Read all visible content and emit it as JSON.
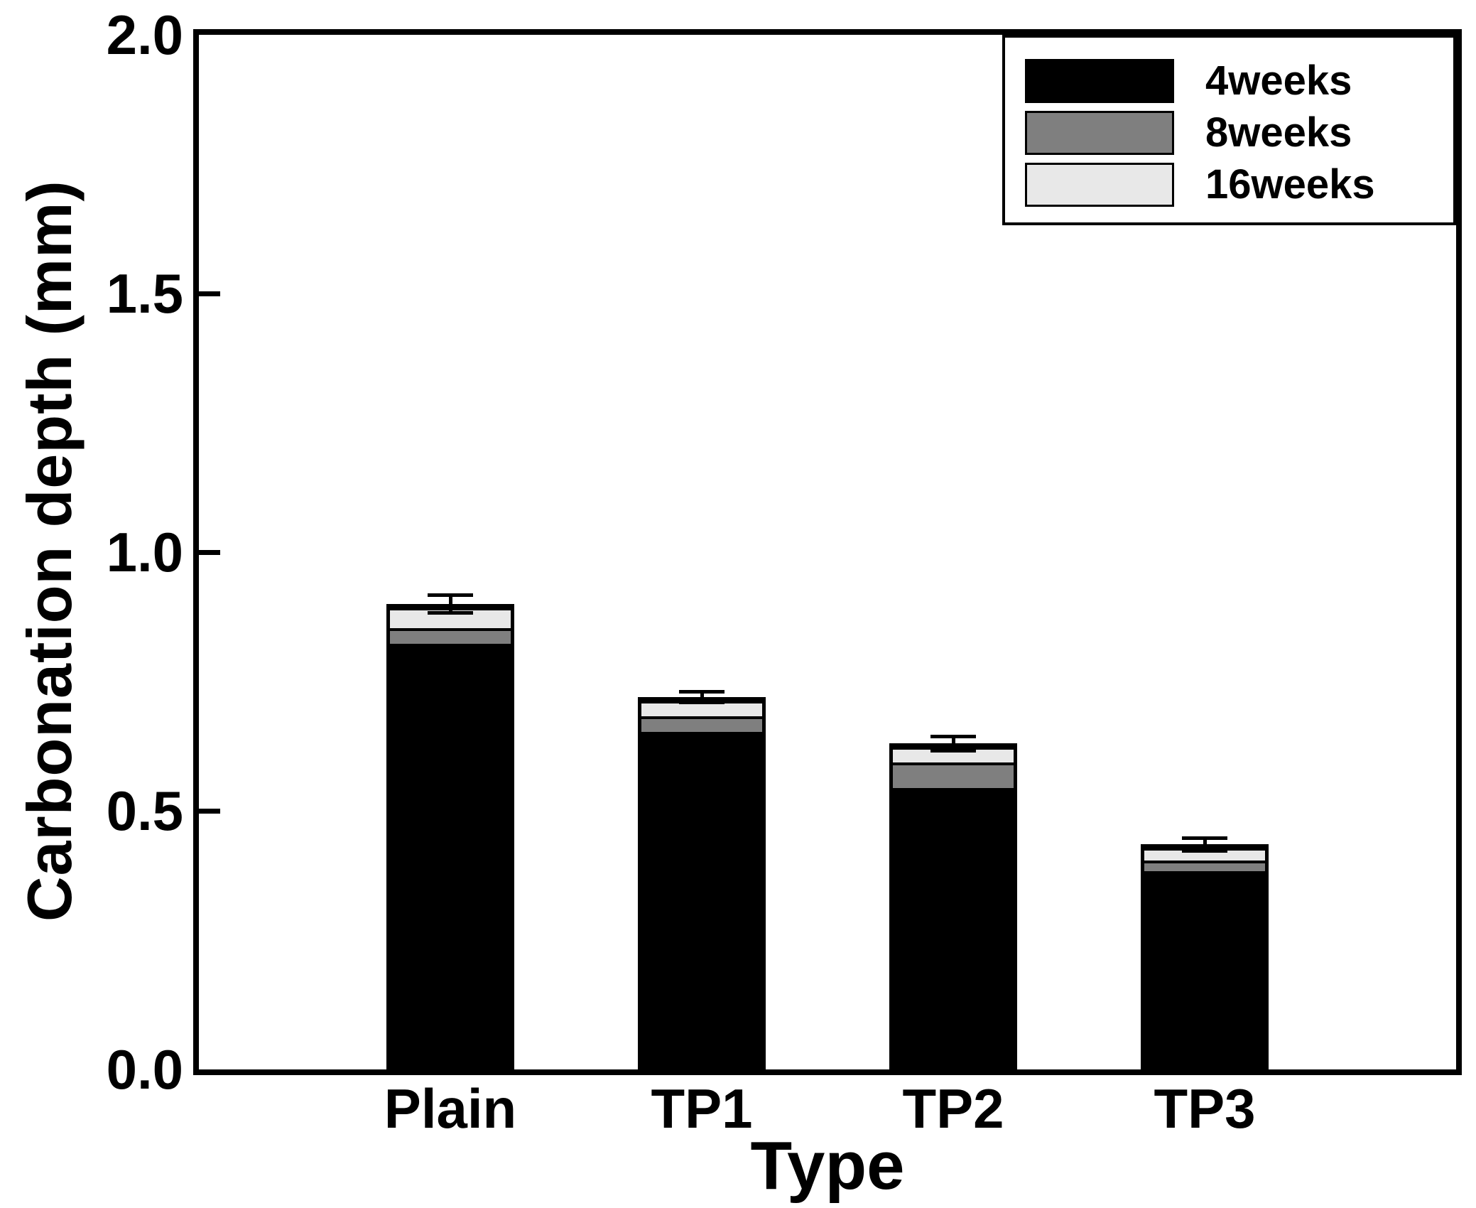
{
  "chart_data": {
    "type": "bar",
    "stacked": true,
    "title": "",
    "xlabel": "Type",
    "ylabel": "Carbonation depth (mm)",
    "categories": [
      "Plain",
      "TP1",
      "TP2",
      "TP3"
    ],
    "series": [
      {
        "name": "4weeks",
        "color": "#000000",
        "values": [
          0.83,
          0.66,
          0.55,
          0.39
        ]
      },
      {
        "name": "8weeks",
        "color": "#7f7f7f",
        "values": [
          0.03,
          0.03,
          0.05,
          0.02
        ]
      },
      {
        "name": "16weeks",
        "color": "#e8e8e8",
        "values": [
          0.04,
          0.03,
          0.03,
          0.025
        ]
      }
    ],
    "stacked_totals": [
      0.9,
      0.72,
      0.63,
      0.435
    ],
    "error_bars_plus_minus": [
      0.021,
      0.014,
      0.017,
      0.016
    ],
    "ylim": [
      0.0,
      2.0
    ],
    "yticks": [
      {
        "value": 0.0,
        "label": "0.0"
      },
      {
        "value": 0.5,
        "label": "0.5"
      },
      {
        "value": 1.0,
        "label": "1.0"
      },
      {
        "value": 1.5,
        "label": "1.5"
      },
      {
        "value": 2.0,
        "label": "2.0"
      }
    ],
    "grid": false,
    "legend_position": "top-right",
    "legend": [
      "4weeks",
      "8weeks",
      "16weeks"
    ],
    "bar_outline_color": "#000000",
    "axis_color": "#000000",
    "background_color": "#ffffff"
  }
}
